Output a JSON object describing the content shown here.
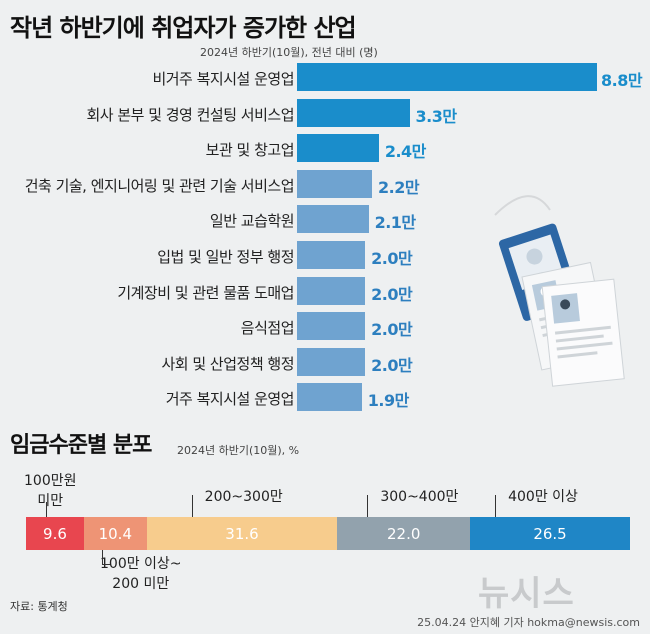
{
  "title": "작년 하반기에 취업자가 증가한 산업",
  "subtitle": "2024년 하반기(10월), 전년 대비 (명)",
  "chart_data": [
    {
      "type": "bar",
      "orientation": "horizontal",
      "categories": [
        "비거주 복지시설 운영업",
        "회사 본부 및 경영 컨설팅 서비스업",
        "보관 및 창고업",
        "건축 기술, 엔지니어링 및 관련 기술 서비스업",
        "일반 교습학원",
        "입법 및 일반 정부 행정",
        "기계장비 및 관련 물품 도매업",
        "음식점업",
        "사회 및 산업정책 행정",
        "거주 복지시설 운영업"
      ],
      "values": [
        8.8,
        3.3,
        2.4,
        2.2,
        2.1,
        2.0,
        2.0,
        2.0,
        2.0,
        1.9
      ],
      "value_labels": [
        "8.8만",
        "3.3만",
        "2.4만",
        "2.2만",
        "2.1만",
        "2.0만",
        "2.0만",
        "2.0만",
        "2.0만",
        "1.9만"
      ],
      "highlight_count": 3,
      "colors": {
        "highlight": "#1a8dcb",
        "normal": "#6fa3d0",
        "highlight_label": "#1a8dcb",
        "normal_label": "#2d7fbf"
      }
    },
    {
      "type": "bar",
      "orientation": "stacked-horizontal",
      "title": "임금수준별 분포",
      "subtitle": "2024년 하반기(10월), %",
      "series": [
        {
          "name": "100만원 미만",
          "value": 9.6,
          "label": "9.6",
          "color": "#e8464f"
        },
        {
          "name": "100만 이상~ 200 미만",
          "value": 10.4,
          "label": "10.4",
          "color": "#ee9475"
        },
        {
          "name": "200~300만",
          "value": 31.6,
          "label": "31.6",
          "color": "#f7cc8d"
        },
        {
          "name": "300~400만",
          "value": 22.0,
          "label": "22.0",
          "color": "#92a2ad"
        },
        {
          "name": "400만 이상",
          "value": 26.5,
          "label": "26.5",
          "color": "#1f86c6"
        }
      ]
    }
  ],
  "source": "자료: 통계청",
  "credit": "25.04.24 안지혜 기자 hokma@newsis.com",
  "watermark": "뉴시스"
}
